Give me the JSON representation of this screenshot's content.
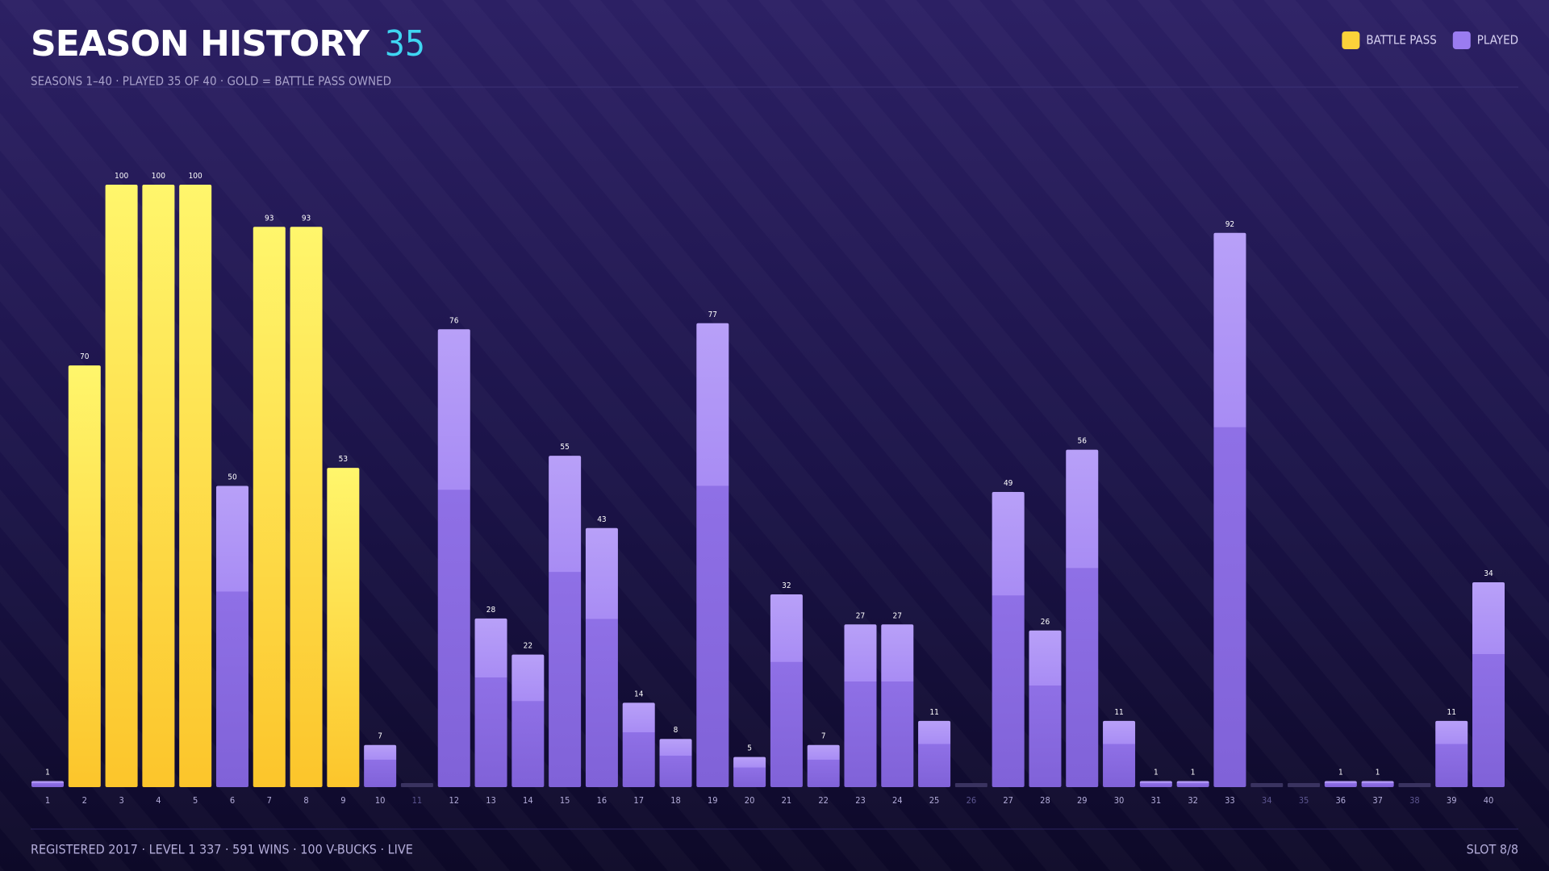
{
  "header": {
    "title": "SEASON HISTORY",
    "count": "35",
    "subtitle": "SEASONS 1–40 · PLAYED 35 OF 40 · GOLD = BATTLE PASS OWNED"
  },
  "chart_data": {
    "type": "bar",
    "categories": [
      "1",
      "2",
      "3",
      "4",
      "5",
      "6",
      "7",
      "8",
      "9",
      "10",
      "11",
      "12",
      "13",
      "14",
      "15",
      "16",
      "17",
      "18",
      "19",
      "20",
      "21",
      "22",
      "23",
      "24",
      "25",
      "26",
      "27",
      "28",
      "29",
      "30",
      "31",
      "32",
      "33",
      "34",
      "35",
      "36",
      "37",
      "38",
      "39",
      "40"
    ],
    "series": [
      {
        "name": "BATTLE PASS",
        "color": "#fcd23a",
        "values": [
          null,
          70,
          100,
          100,
          100,
          null,
          93,
          93,
          53,
          null,
          null,
          null,
          null,
          null,
          null,
          null,
          null,
          null,
          null,
          null,
          null,
          null,
          null,
          null,
          null,
          null,
          null,
          null,
          null,
          null,
          null,
          null,
          null,
          null,
          null,
          null,
          null,
          null,
          null,
          null
        ]
      },
      {
        "name": "PLAYED",
        "color": "#9a7cf0",
        "values": [
          1,
          null,
          null,
          null,
          null,
          50,
          null,
          null,
          null,
          7,
          null,
          76,
          28,
          22,
          55,
          43,
          14,
          8,
          77,
          5,
          32,
          7,
          27,
          27,
          11,
          null,
          49,
          26,
          56,
          11,
          1,
          1,
          92,
          null,
          null,
          1,
          1,
          null,
          11,
          34
        ]
      }
    ],
    "ylim": [
      0,
      100
    ],
    "stacked": false,
    "legend": "top-right",
    "grid": false
  },
  "footer": {
    "stats": "REGISTERED 2017 · LEVEL 1 337 · 591 WINS · 100 V-BUCKS · LIVE",
    "slot": "SLOT 8/8"
  }
}
